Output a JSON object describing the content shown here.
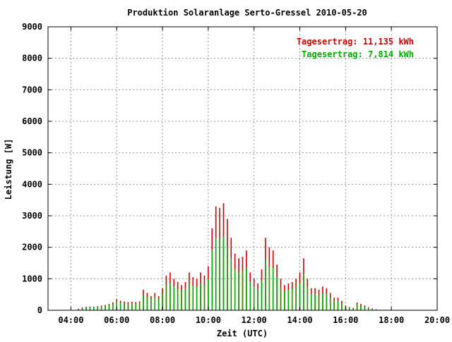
{
  "chart_data": {
    "type": "bar",
    "title": "Produktion Solaranlage Serto-Gressel 2010-05-20",
    "xlabel": "Zeit (UTC)",
    "ylabel": "Leistung [W]",
    "xlim": [
      "03:00",
      "20:00"
    ],
    "ylim": [
      0,
      9000
    ],
    "grid": true,
    "legend_position": "top-right",
    "x_tick_labels": [
      "04:00",
      "06:00",
      "08:00",
      "10:00",
      "12:00",
      "14:00",
      "16:00",
      "18:00",
      "20:00"
    ],
    "y_tick_labels": [
      "0",
      "1000",
      "2000",
      "3000",
      "4000",
      "5000",
      "6000",
      "7000",
      "8000",
      "9000"
    ],
    "annotations": [
      {
        "text": "Tagesertrag: 11,135 kWh",
        "color": "#cc0000"
      },
      {
        "text": "Tagesertrag: 7,814 kWh",
        "color": "#00aa00"
      }
    ],
    "x": [
      "04:20",
      "04:30",
      "04:40",
      "04:50",
      "05:00",
      "05:10",
      "05:20",
      "05:30",
      "05:40",
      "05:50",
      "06:00",
      "06:10",
      "06:20",
      "06:30",
      "06:40",
      "06:50",
      "07:00",
      "07:10",
      "07:20",
      "07:30",
      "07:40",
      "07:50",
      "08:00",
      "08:10",
      "08:20",
      "08:30",
      "08:40",
      "08:50",
      "09:00",
      "09:10",
      "09:20",
      "09:30",
      "09:40",
      "09:50",
      "10:00",
      "10:10",
      "10:20",
      "10:30",
      "10:40",
      "10:50",
      "11:00",
      "11:10",
      "11:20",
      "11:30",
      "11:40",
      "11:50",
      "12:00",
      "12:10",
      "12:20",
      "12:30",
      "12:40",
      "12:50",
      "13:00",
      "13:10",
      "13:20",
      "13:30",
      "13:40",
      "13:50",
      "14:00",
      "14:10",
      "14:20",
      "14:30",
      "14:40",
      "14:50",
      "15:00",
      "15:10",
      "15:20",
      "15:30",
      "15:40",
      "15:50",
      "16:00",
      "16:10",
      "16:20",
      "16:30",
      "16:40",
      "16:50",
      "17:00",
      "17:10",
      "17:20",
      "17:30",
      "17:40",
      "17:50"
    ],
    "series": [
      {
        "color": "#cc0000",
        "values": [
          50,
          90,
          110,
          120,
          110,
          130,
          150,
          170,
          200,
          250,
          350,
          300,
          280,
          260,
          270,
          260,
          280,
          650,
          550,
          450,
          550,
          450,
          700,
          1100,
          1200,
          1000,
          900,
          800,
          900,
          1200,
          1050,
          1000,
          1200,
          1100,
          1400,
          2600,
          3300,
          3250,
          3400,
          2900,
          2300,
          1800,
          1650,
          1700,
          1900,
          1200,
          1000,
          850,
          1300,
          2300,
          2000,
          1900,
          1450,
          1000,
          800,
          850,
          900,
          1000,
          1200,
          1650,
          1000,
          700,
          700,
          650,
          750,
          700,
          550,
          400,
          400,
          300,
          150,
          100,
          80,
          250,
          200,
          150,
          100,
          60,
          30,
          15,
          10,
          5
        ]
      },
      {
        "color": "#00aa00",
        "values": [
          40,
          70,
          90,
          100,
          90,
          100,
          120,
          140,
          160,
          200,
          280,
          240,
          220,
          200,
          210,
          200,
          220,
          480,
          420,
          350,
          420,
          350,
          520,
          800,
          850,
          750,
          680,
          620,
          680,
          850,
          780,
          750,
          850,
          800,
          1000,
          1900,
          2300,
          2250,
          2350,
          2000,
          1650,
          1300,
          1200,
          1250,
          1350,
          900,
          750,
          650,
          950,
          1600,
          1400,
          1350,
          1050,
          750,
          600,
          650,
          680,
          750,
          850,
          1150,
          750,
          520,
          520,
          480,
          550,
          520,
          400,
          300,
          300,
          220,
          110,
          75,
          60,
          180,
          150,
          110,
          75,
          45,
          25,
          12,
          8,
          4
        ]
      }
    ]
  }
}
